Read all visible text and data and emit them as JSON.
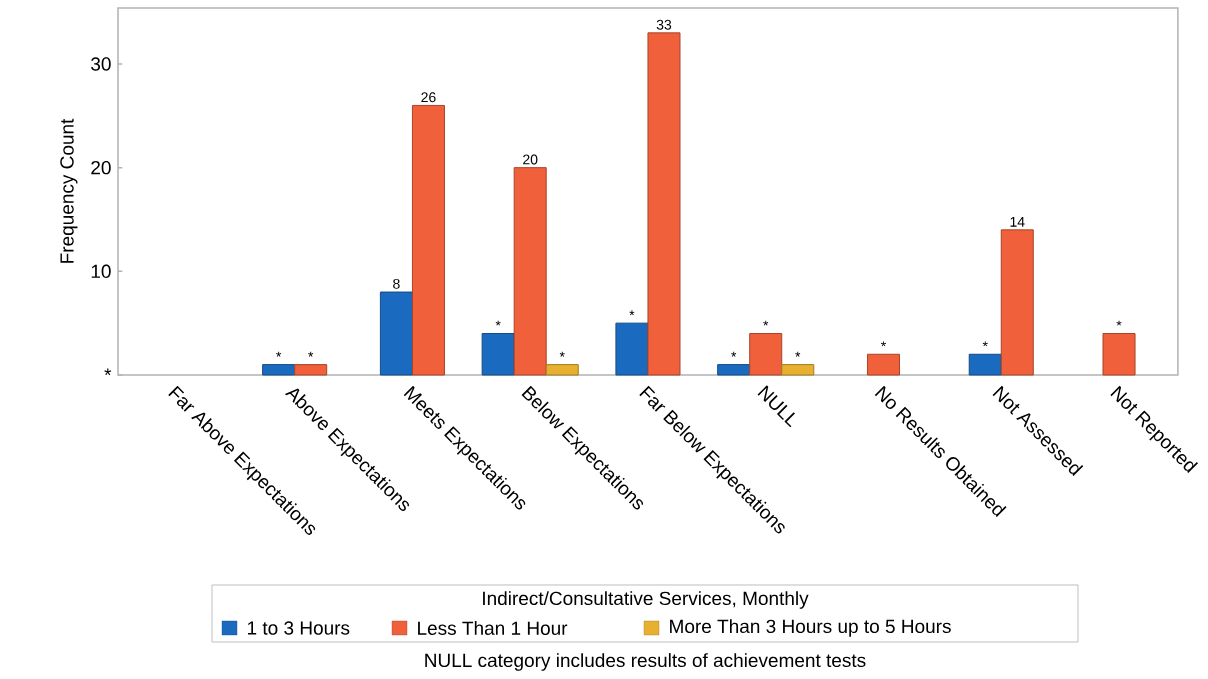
{
  "chart_data": {
    "type": "bar",
    "ylabel": "Frequency Count",
    "legend_title": "Indirect/Consultative Services, Monthly",
    "legend": "bottom",
    "categories": [
      "Far Above Expectations",
      "Above Expectations",
      "Meets Expectations",
      "Below Expectations",
      "Far Below Expectations",
      "NULL",
      "No Results Obtained",
      "Not Assessed",
      "Not Reported"
    ],
    "series": [
      {
        "name": "1 to 3 Hours",
        "color": "#1a6bbf",
        "values": [
          null,
          1,
          8,
          4,
          5,
          1,
          null,
          2,
          null
        ],
        "value_labels": [
          null,
          "*",
          "8",
          "*",
          "*",
          "*",
          null,
          "*",
          null
        ]
      },
      {
        "name": "Less Than 1 Hour",
        "color": "#f0603a",
        "values": [
          null,
          1,
          26,
          20,
          33,
          4,
          2,
          14,
          4
        ],
        "value_labels": [
          null,
          "*",
          "26",
          "20",
          "33",
          "*",
          "*",
          "14",
          "*"
        ]
      },
      {
        "name": "More Than 3 Hours up to 5 Hours",
        "color": "#e8b030",
        "values": [
          null,
          null,
          null,
          1,
          null,
          1,
          null,
          null,
          null
        ],
        "value_labels": [
          null,
          null,
          null,
          "*",
          null,
          "*",
          null,
          null,
          null
        ]
      }
    ],
    "ylim": [
      0,
      35.4
    ],
    "yticks": [
      {
        "value": 0,
        "label": "*"
      },
      10,
      20,
      30
    ],
    "annotations": [
      "NULL category includes results of achievement tests"
    ]
  }
}
